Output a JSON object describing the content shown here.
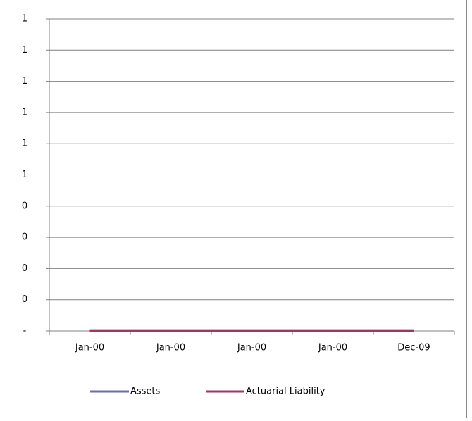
{
  "chart_data": {
    "type": "line",
    "categories": [
      "Jan-00",
      "Jan-00",
      "Jan-00",
      "Jan-00",
      "Dec-09"
    ],
    "series": [
      {
        "name": "Assets",
        "color": "#6e6eab",
        "values": [
          0,
          0,
          0,
          0,
          0
        ]
      },
      {
        "name": "Actuarial Liability",
        "color": "#a23561",
        "values": [
          0,
          0,
          0,
          0,
          0
        ]
      }
    ],
    "ylim": [
      0,
      1
    ],
    "yticks": [
      {
        "value": 0,
        "label": "-"
      },
      {
        "value": 0.1,
        "label": "0"
      },
      {
        "value": 0.2,
        "label": "0"
      },
      {
        "value": 0.3,
        "label": "0"
      },
      {
        "value": 0.4,
        "label": "0"
      },
      {
        "value": 0.5,
        "label": "1"
      },
      {
        "value": 0.6,
        "label": "1"
      },
      {
        "value": 0.7,
        "label": "1"
      },
      {
        "value": 0.8,
        "label": "1"
      },
      {
        "value": 0.9,
        "label": "1"
      },
      1
    ],
    "grid": true,
    "legend": "bottom"
  }
}
